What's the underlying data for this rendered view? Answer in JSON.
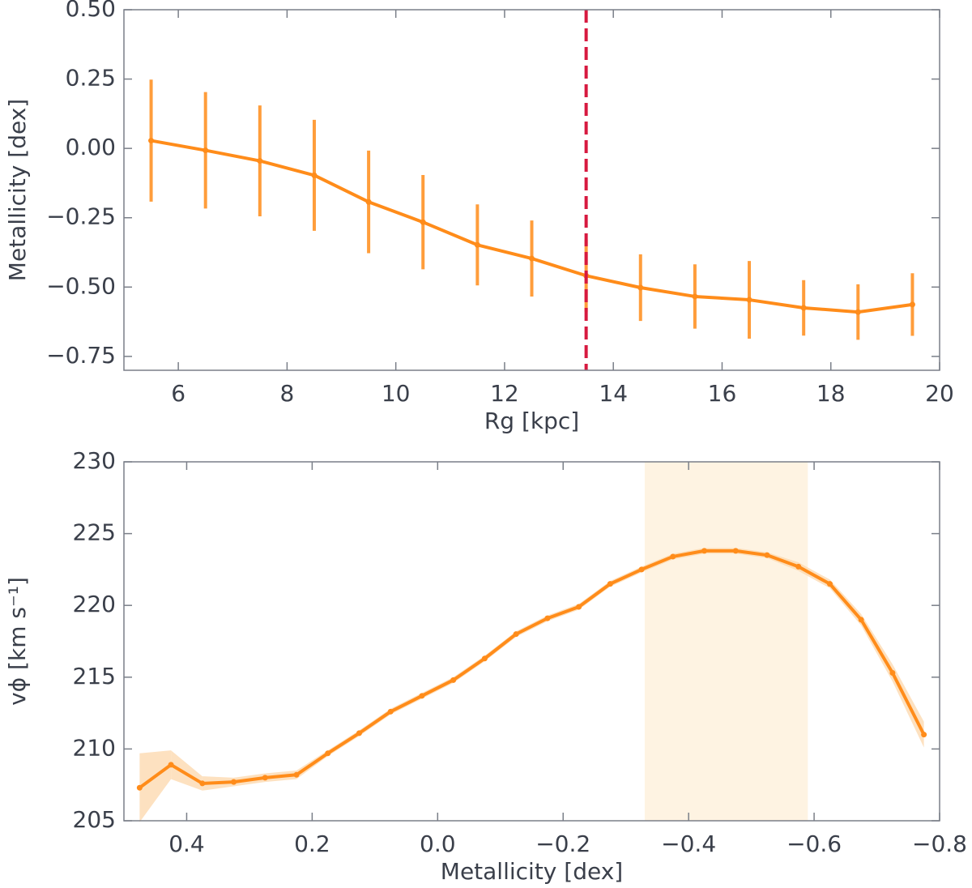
{
  "chart_data": [
    {
      "type": "line",
      "xlabel": "Rg [kpc]",
      "ylabel": "Metallicity [dex]",
      "x": [
        5.5,
        6.5,
        7.5,
        8.5,
        9.5,
        10.5,
        11.5,
        12.5,
        13.5,
        14.5,
        15.5,
        16.5,
        17.5,
        18.5,
        19.5
      ],
      "series": [
        {
          "color": "#ff8c1a",
          "values": [
            0.028,
            -0.007,
            -0.045,
            -0.097,
            -0.193,
            -0.266,
            -0.348,
            -0.397,
            -0.459,
            -0.502,
            -0.534,
            -0.546,
            -0.575,
            -0.59,
            -0.563
          ],
          "errors": [
            0.22,
            0.21,
            0.2,
            0.2,
            0.185,
            0.17,
            0.146,
            0.137,
            0.13,
            0.12,
            0.116,
            0.14,
            0.1,
            0.1,
            0.113
          ]
        }
      ],
      "vline": {
        "x": 13.5,
        "color": "#d7193f"
      },
      "xlim": [
        5,
        20
      ],
      "ylim": [
        -0.8,
        0.5
      ],
      "xticks": [
        6,
        8,
        10,
        12,
        14,
        16,
        18,
        20
      ],
      "yticks": [
        {
          "value": -0.75,
          "label": "−0.75"
        },
        {
          "value": -0.5,
          "label": "−0.50"
        },
        {
          "value": -0.25,
          "label": "−0.25"
        },
        {
          "value": 0,
          "label": "0.00"
        },
        {
          "value": 0.25,
          "label": "0.25"
        },
        {
          "value": 0.5,
          "label": "0.50"
        }
      ]
    },
    {
      "type": "line",
      "xlabel": "Metallicity [dex]",
      "ylabel": "vϕ [km s⁻¹]",
      "x": [
        0.475,
        0.425,
        0.375,
        0.325,
        0.275,
        0.225,
        0.175,
        0.125,
        0.075,
        0.025,
        -0.025,
        -0.075,
        -0.125,
        -0.175,
        -0.225,
        -0.275,
        -0.325,
        -0.375,
        -0.425,
        -0.475,
        -0.525,
        -0.575,
        -0.625,
        -0.675,
        -0.725,
        -0.775
      ],
      "series": [
        {
          "color": "#ff8c1a",
          "band_color": "#fdd9b0",
          "values": [
            207.3,
            208.9,
            207.6,
            207.7,
            208.0,
            208.2,
            209.7,
            211.1,
            212.6,
            213.7,
            214.8,
            216.3,
            218.0,
            219.1,
            219.9,
            221.5,
            222.5,
            223.4,
            223.8,
            223.8,
            223.5,
            222.7,
            221.5,
            219.0,
            215.3,
            211.0
          ],
          "band_errors": [
            2.4,
            1.0,
            0.5,
            0.3,
            0.3,
            0.3,
            0.2,
            0.2,
            0.2,
            0.2,
            0.2,
            0.2,
            0.2,
            0.2,
            0.2,
            0.2,
            0.2,
            0.2,
            0.2,
            0.2,
            0.2,
            0.3,
            0.3,
            0.4,
            0.6,
            0.9
          ]
        }
      ],
      "span": {
        "from": -0.33,
        "to": -0.59,
        "color": "#fef3e2"
      },
      "xlim": [
        0.5,
        -0.8
      ],
      "ylim": [
        205,
        230
      ],
      "xticks": [
        0.4,
        0.2,
        {
          "value": 0,
          "label": "0.0"
        },
        {
          "value": -0.2,
          "label": "−0.2"
        },
        {
          "value": -0.4,
          "label": "−0.4"
        },
        {
          "value": -0.6,
          "label": "−0.6"
        },
        {
          "value": -0.8,
          "label": "−0.8"
        }
      ],
      "yticks": [
        205,
        210,
        215,
        220,
        225,
        230
      ]
    }
  ]
}
